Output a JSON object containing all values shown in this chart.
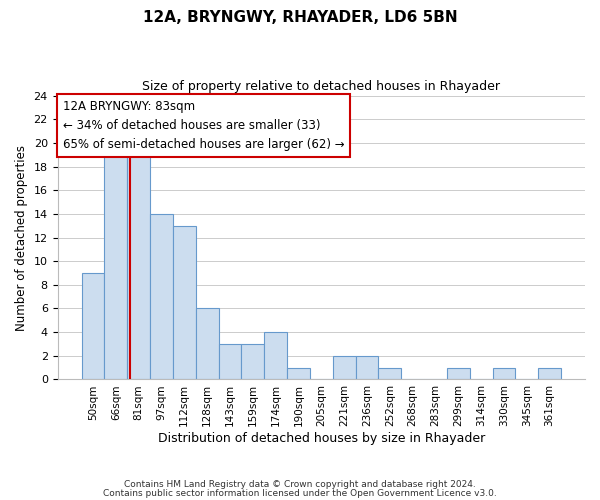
{
  "title": "12A, BRYNGWY, RHAYADER, LD6 5BN",
  "subtitle": "Size of property relative to detached houses in Rhayader",
  "xlabel": "Distribution of detached houses by size in Rhayader",
  "ylabel": "Number of detached properties",
  "bar_labels": [
    "50sqm",
    "66sqm",
    "81sqm",
    "97sqm",
    "112sqm",
    "128sqm",
    "143sqm",
    "159sqm",
    "174sqm",
    "190sqm",
    "205sqm",
    "221sqm",
    "236sqm",
    "252sqm",
    "268sqm",
    "283sqm",
    "299sqm",
    "314sqm",
    "330sqm",
    "345sqm",
    "361sqm"
  ],
  "bar_heights": [
    9,
    19,
    20,
    14,
    13,
    6,
    3,
    3,
    4,
    1,
    0,
    2,
    2,
    1,
    0,
    0,
    1,
    0,
    1,
    0,
    1
  ],
  "bar_color": "#ccddef",
  "bar_edge_color": "#6699cc",
  "ylim": [
    0,
    24
  ],
  "yticks": [
    0,
    2,
    4,
    6,
    8,
    10,
    12,
    14,
    16,
    18,
    20,
    22,
    24
  ],
  "vline_color": "#cc0000",
  "annotation_title": "12A BRYNGWY: 83sqm",
  "annotation_line1": "← 34% of detached houses are smaller (33)",
  "annotation_line2": "65% of semi-detached houses are larger (62) →",
  "annotation_box_color": "#ffffff",
  "annotation_box_edge": "#cc0000",
  "footer1": "Contains HM Land Registry data © Crown copyright and database right 2024.",
  "footer2": "Contains public sector information licensed under the Open Government Licence v3.0.",
  "background_color": "#ffffff",
  "grid_color": "#cccccc"
}
